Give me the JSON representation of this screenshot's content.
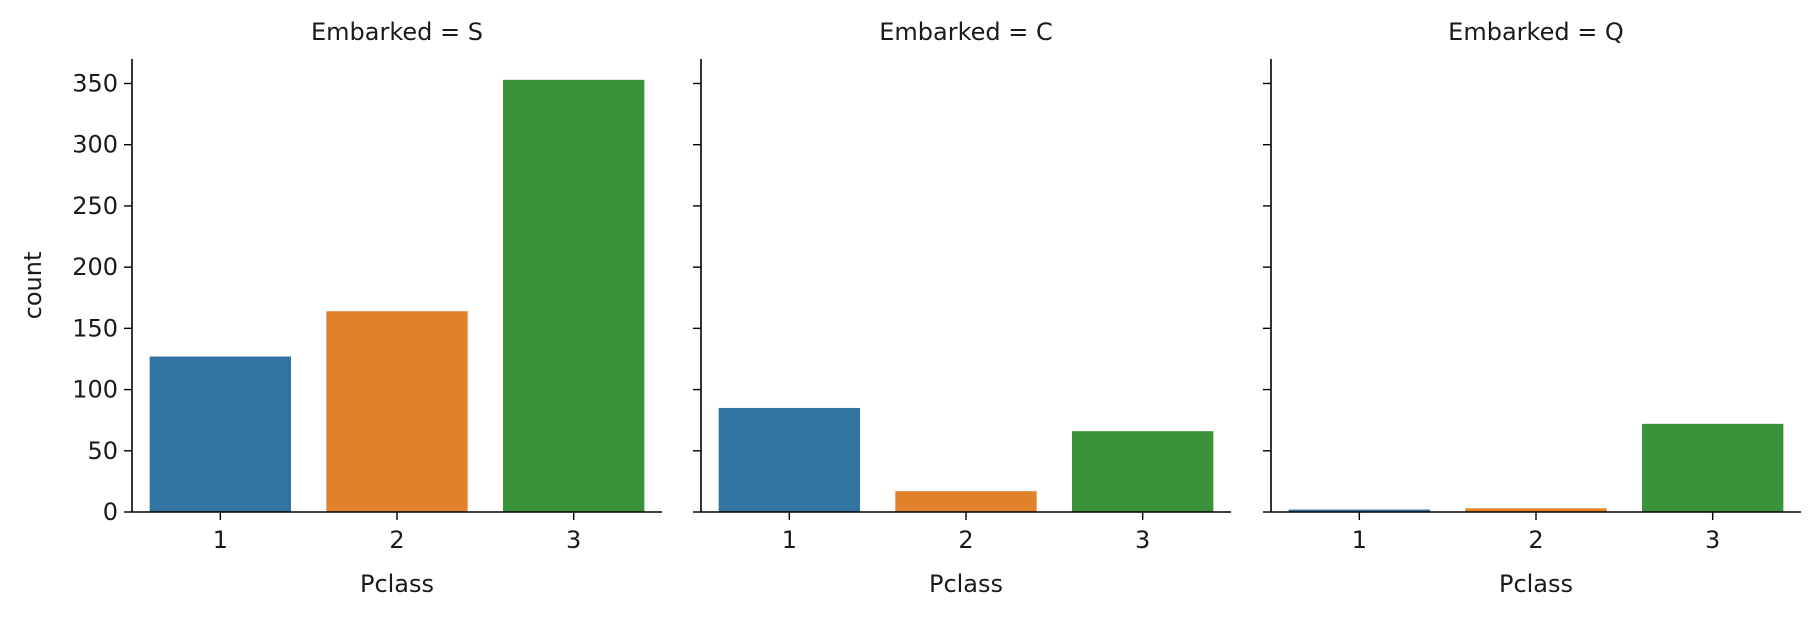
{
  "chart_data": {
    "type": "bar",
    "facet_label": "Embarked",
    "xlabel": "Pclass",
    "ylabel": "count",
    "categories": [
      "1",
      "2",
      "3"
    ],
    "ylim": [
      0,
      370
    ],
    "yticks": [
      0,
      50,
      100,
      150,
      200,
      250,
      300,
      350
    ],
    "colors": [
      "#3274a1",
      "#e1812c",
      "#3a923a"
    ],
    "grid": false,
    "panels": [
      {
        "title": "Embarked = S",
        "values": [
          127,
          164,
          353
        ]
      },
      {
        "title": "Embarked = C",
        "values": [
          85,
          17,
          66
        ]
      },
      {
        "title": "Embarked = Q",
        "values": [
          2,
          3,
          72
        ]
      }
    ]
  }
}
